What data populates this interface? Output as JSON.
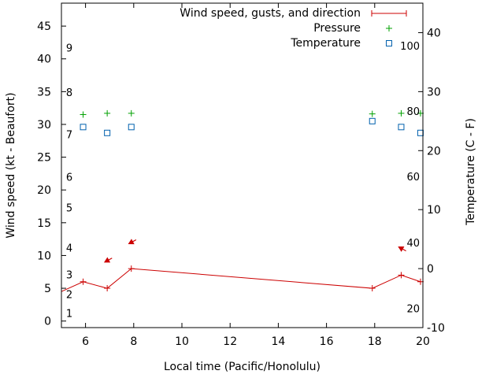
{
  "chart_data": {
    "type": "line",
    "xlabel": "Local time (Pacific/Honolulu)",
    "ylabel": "Wind speed (kt - Beaufort)",
    "y2label": "Temperature (C - F)",
    "xlim": [
      5,
      20
    ],
    "ylim": [
      -1,
      48.5
    ],
    "y2lim": [
      -10,
      45
    ],
    "x_ticks": [
      6,
      8,
      10,
      12,
      14,
      16,
      18,
      20
    ],
    "y_ticks": [
      0,
      5,
      10,
      15,
      20,
      25,
      30,
      35,
      40,
      45
    ],
    "y2_ticks": [
      -10,
      0,
      10,
      20,
      30,
      40
    ],
    "beaufort_labels": [
      {
        "label": "1",
        "y": 1.2
      },
      {
        "label": "2",
        "y": 4.1
      },
      {
        "label": "3",
        "y": 7.1
      },
      {
        "label": "4",
        "y": 11.2
      },
      {
        "label": "5",
        "y": 17.3
      },
      {
        "label": "6",
        "y": 22.0
      },
      {
        "label": "7",
        "y": 28.5
      },
      {
        "label": "8",
        "y": 34.9
      },
      {
        "label": "9",
        "y": 41.7
      }
    ],
    "fahrenheit_labels": [
      {
        "label": "20",
        "y2": -6.7
      },
      {
        "label": "40",
        "y2": 4.4
      },
      {
        "label": "60",
        "y2": 15.6
      },
      {
        "label": "80",
        "y2": 26.7
      },
      {
        "label": "100",
        "y2": 37.8
      }
    ],
    "series": [
      {
        "name": "Wind speed, gusts, and direction",
        "color": "#cc0000",
        "style": "line-points",
        "x": [
          5.0,
          5.9,
          6.9,
          7.9,
          17.9,
          19.1,
          19.9
        ],
        "values": [
          4.5,
          6.0,
          5.0,
          8.0,
          5.0,
          7.0,
          6.0
        ]
      },
      {
        "name": "Pressure",
        "color": "#00a000",
        "style": "plus",
        "x": [
          5.9,
          6.9,
          7.9,
          17.9,
          19.1,
          19.9
        ],
        "values": [
          31.5,
          31.7,
          31.7,
          31.6,
          31.7,
          31.7
        ]
      },
      {
        "name": "Temperature",
        "color": "#0060ad",
        "style": "square",
        "axis": "y2",
        "x": [
          5.9,
          6.9,
          7.9,
          17.9,
          19.1,
          19.9
        ],
        "values": [
          24.0,
          23.0,
          24.0,
          25.0,
          24.0,
          23.0
        ]
      }
    ],
    "wind_arrows": [
      {
        "x": 6.8,
        "y": 9.0,
        "dx": 0.3,
        "dy": 0.6
      },
      {
        "x": 7.8,
        "y": 11.8,
        "dx": 0.3,
        "dy": 0.6
      },
      {
        "x": 19.0,
        "y": 11.3,
        "dx": 0.3,
        "dy": -0.6
      }
    ]
  }
}
